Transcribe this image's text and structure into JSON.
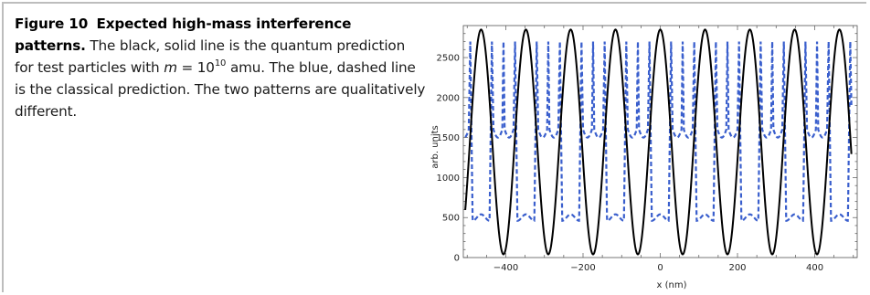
{
  "figure": {
    "label": "Figure 10",
    "title": "Expected high-mass interference patterns.",
    "caption_part1": "The black, solid line is the quantum prediction for test particles with",
    "mass_symbol": "m",
    "mass_eq": "= 10",
    "mass_exp": "10",
    "mass_unit": "amu. The blue, dashed line is the classical prediction. The two patterns are qualitatively different."
  },
  "colors": {
    "quantum_line": "#000000",
    "classical_line": "#3a5fcd",
    "frame": "#bdbdbd"
  },
  "chart_data": {
    "type": "line",
    "title": "",
    "xlabel": "x (nm)",
    "ylabel": "arb. units",
    "xlim": [
      -510,
      510
    ],
    "ylim": [
      0,
      2900
    ],
    "xticks": [
      -400,
      -200,
      0,
      200,
      400
    ],
    "xtick_labels": [
      "−400",
      "−200",
      "0",
      "200",
      "400"
    ],
    "yticks": [
      0,
      500,
      1000,
      1500,
      2000,
      2500
    ],
    "ytick_labels": [
      "0",
      "500",
      "1000",
      "1500",
      "2000",
      "2500"
    ],
    "grid": false,
    "legend": "none",
    "series": [
      {
        "style": "solid",
        "color": "#000000",
        "description_model": "quantum",
        "x_range": [
          -505,
          495
        ],
        "period": 116,
        "peak_x": 0,
        "min": 40,
        "max": 2850
      },
      {
        "style": "dashed",
        "color": "#3a5fcd",
        "description_model": "classical",
        "x_range": [
          -505,
          495
        ],
        "period": 116,
        "low_plateau_at_x": 0,
        "plateau_low": 500,
        "plateau_mid": 1600,
        "max": 2700
      }
    ]
  }
}
